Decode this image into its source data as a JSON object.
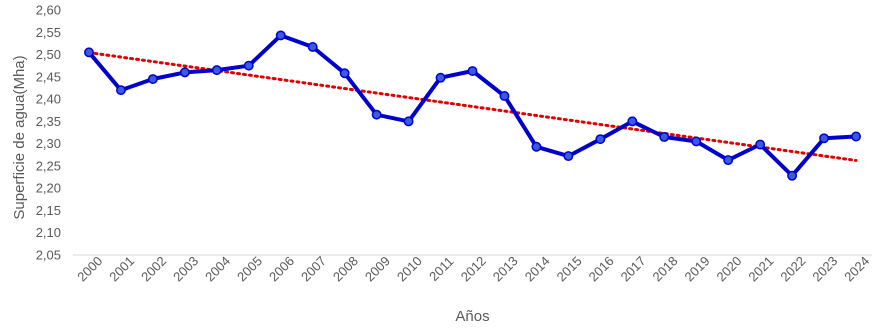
{
  "chart_data": {
    "type": "line",
    "title": "",
    "xlabel": "Años",
    "ylabel": "Superficie de agua(Mha)",
    "categories": [
      "2000",
      "2001",
      "2002",
      "2003",
      "2004",
      "2005",
      "2006",
      "2007",
      "2008",
      "2009",
      "2010",
      "2011",
      "2012",
      "2013",
      "2014",
      "2015",
      "2016",
      "2017",
      "2018",
      "2019",
      "2020",
      "2021",
      "2022",
      "2023",
      "2024"
    ],
    "series": [
      {
        "color": "#0000cc",
        "marker_color": "#3a5ae0",
        "values": [
          2.505,
          2.42,
          2.445,
          2.46,
          2.465,
          2.475,
          2.543,
          2.517,
          2.458,
          2.365,
          2.35,
          2.448,
          2.463,
          2.407,
          2.293,
          2.272,
          2.31,
          2.35,
          2.315,
          2.305,
          2.263,
          2.298,
          2.228,
          2.312,
          2.316
        ]
      }
    ],
    "trendline": {
      "type": "linear",
      "style": "dotted",
      "color": "#e00000"
    },
    "ylim": [
      2.05,
      2.6
    ],
    "yticks": [
      "2,05",
      "2,10",
      "2,15",
      "2,20",
      "2,25",
      "2,30",
      "2,35",
      "2,40",
      "2,45",
      "2,50",
      "2,55",
      "2,60"
    ],
    "grid": false,
    "legend": "none"
  }
}
